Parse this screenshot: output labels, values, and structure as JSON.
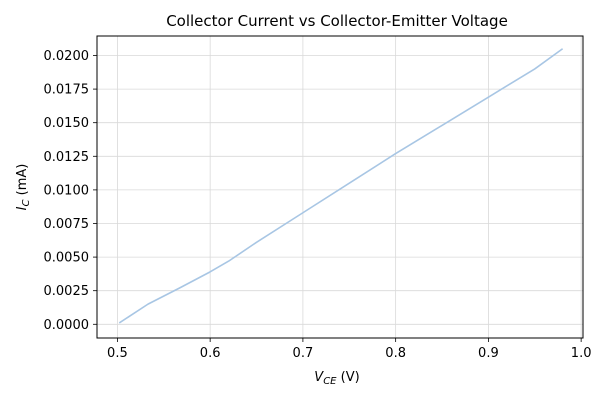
{
  "chart_data": {
    "type": "line",
    "title": "Collector Current vs Collector-Emitter Voltage",
    "xlabel": {
      "symbol": "V",
      "subscript": "CE",
      "unit": " (V)"
    },
    "ylabel": {
      "symbol": "I",
      "subscript": "C",
      "unit": " (mA)"
    },
    "xlim": [
      0.478,
      1.002
    ],
    "ylim": [
      -0.00102,
      0.02145
    ],
    "x_ticks": [
      0.5,
      0.6,
      0.7,
      0.8,
      0.9,
      1.0
    ],
    "x_tick_labels": [
      "0.5",
      "0.6",
      "0.7",
      "0.8",
      "0.9",
      "1.0"
    ],
    "y_ticks": [
      0.0,
      0.0025,
      0.005,
      0.0075,
      0.01,
      0.0125,
      0.015,
      0.0175,
      0.02
    ],
    "y_tick_labels": [
      "0.0000",
      "0.0025",
      "0.0050",
      "0.0075",
      "0.0100",
      "0.0125",
      "0.0150",
      "0.0175",
      "0.0200"
    ],
    "grid": true,
    "series": [
      {
        "color": "#a8c6e4",
        "x": [
          0.502,
          0.533,
          0.567,
          0.6,
          0.62,
          0.65,
          0.7,
          0.75,
          0.8,
          0.85,
          0.9,
          0.95,
          0.98
        ],
        "y": [
          0.0001,
          0.0015,
          0.0027,
          0.0039,
          0.0047,
          0.0061,
          0.0083,
          0.0105,
          0.0127,
          0.0148,
          0.0169,
          0.019,
          0.0205
        ]
      }
    ]
  }
}
